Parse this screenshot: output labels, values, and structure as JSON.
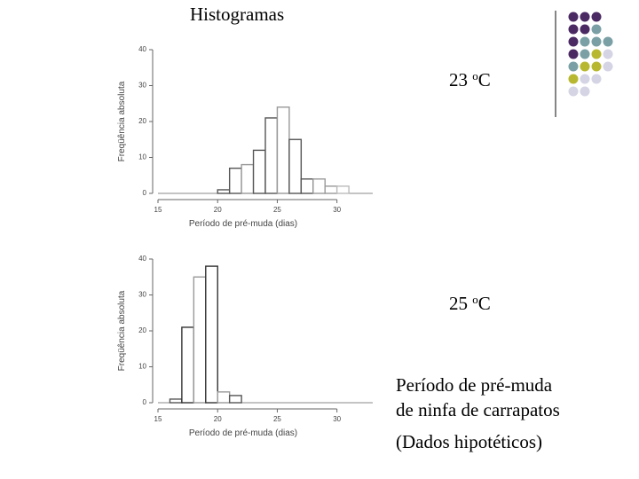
{
  "slide": {
    "title": "Histogramas",
    "temp1": {
      "value": "23",
      "unit": "C"
    },
    "temp2": {
      "value": "25",
      "unit": "C"
    },
    "caption_line1": "Período de pré-muda",
    "caption_line2": "de ninfa de carrapatos",
    "caption_note": "(Dados hipotéticos)"
  },
  "decoration": {
    "colors": [
      "#4b2a63",
      "#7aa0a5",
      "#b8b830",
      "#d4d4e4"
    ]
  },
  "chart_data": [
    {
      "type": "bar",
      "title": "",
      "xlabel": "Período de pré-muda (dias)",
      "ylabel": "Freqüência absoluta",
      "xlim": [
        15,
        33
      ],
      "ylim": [
        0,
        40
      ],
      "xticks": [
        15,
        20,
        25,
        30
      ],
      "yticks": [
        0,
        10,
        20,
        30,
        40
      ],
      "bin_width": 1,
      "bins": [
        {
          "x0": 20,
          "count": 1,
          "shade": "#555555"
        },
        {
          "x0": 21,
          "count": 7,
          "shade": "#555555"
        },
        {
          "x0": 22,
          "count": 8,
          "shade": "#999999"
        },
        {
          "x0": 23,
          "count": 12,
          "shade": "#555555"
        },
        {
          "x0": 24,
          "count": 21,
          "shade": "#555555"
        },
        {
          "x0": 25,
          "count": 24,
          "shade": "#999999"
        },
        {
          "x0": 26,
          "count": 15,
          "shade": "#555555"
        },
        {
          "x0": 27,
          "count": 4,
          "shade": "#555555"
        },
        {
          "x0": 28,
          "count": 4,
          "shade": "#999999"
        },
        {
          "x0": 29,
          "count": 2,
          "shade": "#999999"
        },
        {
          "x0": 30,
          "count": 2,
          "shade": "#bbbbbb"
        }
      ]
    },
    {
      "type": "bar",
      "title": "",
      "xlabel": "Período de pré-muda (dias)",
      "ylabel": "Freqüência absoluta",
      "xlim": [
        15,
        33
      ],
      "ylim": [
        0,
        40
      ],
      "xticks": [
        15,
        20,
        25,
        30
      ],
      "yticks": [
        0,
        10,
        20,
        30,
        40
      ],
      "bin_width": 1,
      "bins": [
        {
          "x0": 16,
          "count": 1,
          "shade": "#555555"
        },
        {
          "x0": 17,
          "count": 21,
          "shade": "#333333"
        },
        {
          "x0": 18,
          "count": 35,
          "shade": "#999999"
        },
        {
          "x0": 19,
          "count": 38,
          "shade": "#333333"
        },
        {
          "x0": 20,
          "count": 3,
          "shade": "#999999"
        },
        {
          "x0": 21,
          "count": 2,
          "shade": "#555555"
        }
      ]
    }
  ]
}
